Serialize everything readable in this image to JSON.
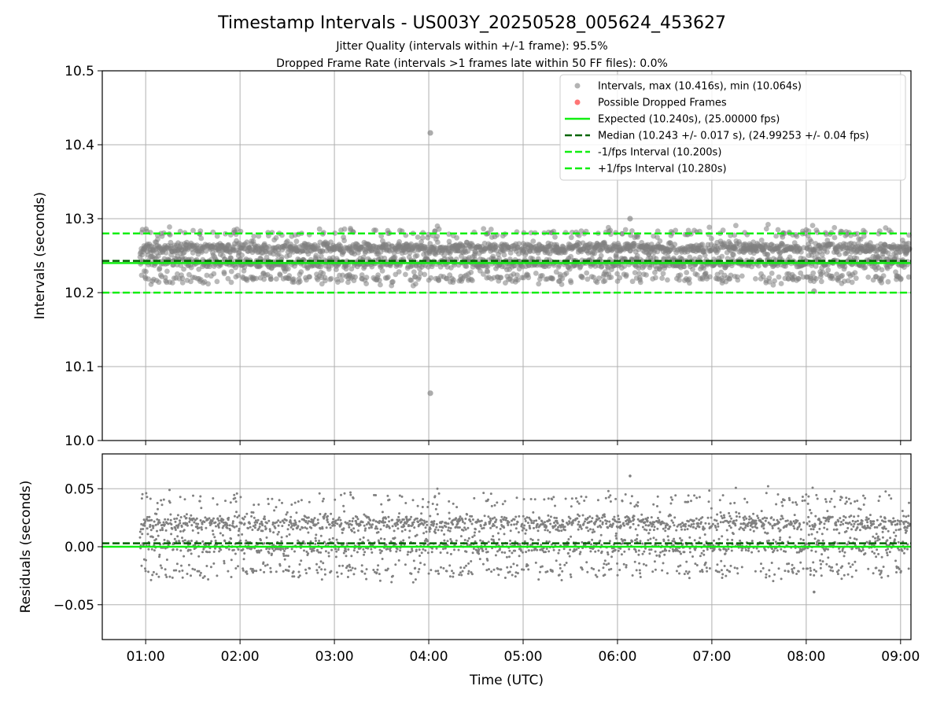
{
  "figure": {
    "title": "Timestamp Intervals - US003Y_20250528_005624_453627",
    "subtitle_1": "Jitter Quality (intervals within +/-1 frame): 95.5%",
    "subtitle_2": "Dropped Frame Rate (intervals >1 frames late within 50 FF files): 0.0%"
  },
  "colors": {
    "points": "#808080",
    "dropped": "#ff6666",
    "expected": "#11ee11",
    "median": "#006400",
    "fps_bounds": "#11ee11",
    "grid": "#b0b0b0"
  },
  "chart_data": [
    {
      "type": "scatter",
      "panel": "intervals",
      "ylabel": "Intervals (seconds)",
      "ylim": [
        10.0,
        10.5
      ],
      "yticks": [
        10.0,
        10.1,
        10.2,
        10.3,
        10.4,
        10.5
      ],
      "ytick_labels": [
        "10.0",
        "10.1",
        "10.2",
        "10.3",
        "10.4",
        "10.5"
      ],
      "xlim_hours": [
        0.54,
        9.11
      ],
      "grid": true,
      "legend_position": "top-right",
      "legend": [
        {
          "label": "Intervals, max (10.416s), min (10.064s)",
          "kind": "point",
          "color": "#808080"
        },
        {
          "label": "Possible Dropped Frames",
          "kind": "point",
          "color": "#ff6666"
        },
        {
          "label": "Expected (10.240s), (25.00000 fps)",
          "kind": "line",
          "color": "#11ee11"
        },
        {
          "label": "Median (10.243 +/- 0.017 s), (24.99253 +/- 0.04 fps)",
          "kind": "dash",
          "color": "#006400"
        },
        {
          "label": "-1/fps Interval (10.200s)",
          "kind": "dash",
          "color": "#11ee11"
        },
        {
          "label": "+1/fps Interval (10.280s)",
          "kind": "dash",
          "color": "#11ee11"
        }
      ],
      "series": {
        "time_start_hours": 0.94,
        "time_end_hours": 9.1,
        "interval_seconds": 10.24,
        "bands": [
          {
            "value": 10.26,
            "share": 0.45,
            "spread": 0.004
          },
          {
            "value": 10.24,
            "share": 0.33,
            "spread": 0.004
          },
          {
            "value": 10.22,
            "share": 0.13,
            "spread": 0.004
          },
          {
            "value": 10.28,
            "share": 0.07,
            "spread": 0.004
          },
          {
            "value": 10.25,
            "share": 0.02,
            "spread": 0.012
          }
        ],
        "outliers": [
          {
            "t": "04:01",
            "value": 10.416
          },
          {
            "t": "04:01",
            "value": 10.064
          },
          {
            "t": "06:08",
            "value": 10.3
          },
          {
            "t": "08:05",
            "value": 10.202
          }
        ]
      },
      "reference_lines": {
        "expected": 10.24,
        "median": 10.243,
        "minus_1_fps": 10.2,
        "plus_1_fps": 10.28
      }
    },
    {
      "type": "scatter",
      "panel": "residuals",
      "ylabel": "Residuals (seconds)",
      "xlabel": "Time (UTC)",
      "ylim": [
        -0.08,
        0.08
      ],
      "yticks": [
        -0.05,
        0.0,
        0.05
      ],
      "ytick_labels": [
        "−0.05",
        "0.00",
        "0.05"
      ],
      "xticks_hours": [
        1,
        2,
        3,
        4,
        5,
        6,
        7,
        8,
        9
      ],
      "xtick_labels": [
        "01:00",
        "02:00",
        "03:00",
        "04:00",
        "05:00",
        "06:00",
        "07:00",
        "08:00",
        "09:00"
      ],
      "grid": true,
      "series": {
        "bands": [
          {
            "value": 0.02,
            "share": 0.45,
            "spread": 0.004
          },
          {
            "value": 0.0,
            "share": 0.33,
            "spread": 0.004
          },
          {
            "value": -0.02,
            "share": 0.13,
            "spread": 0.004
          },
          {
            "value": 0.04,
            "share": 0.07,
            "spread": 0.004
          },
          {
            "value": 0.01,
            "share": 0.02,
            "spread": 0.012
          }
        ],
        "outliers": [
          {
            "t": "06:08",
            "value": 0.061
          },
          {
            "t": "08:05",
            "value": -0.039
          }
        ]
      },
      "reference_lines": {
        "expected": 0.0,
        "median": 0.003
      }
    }
  ]
}
